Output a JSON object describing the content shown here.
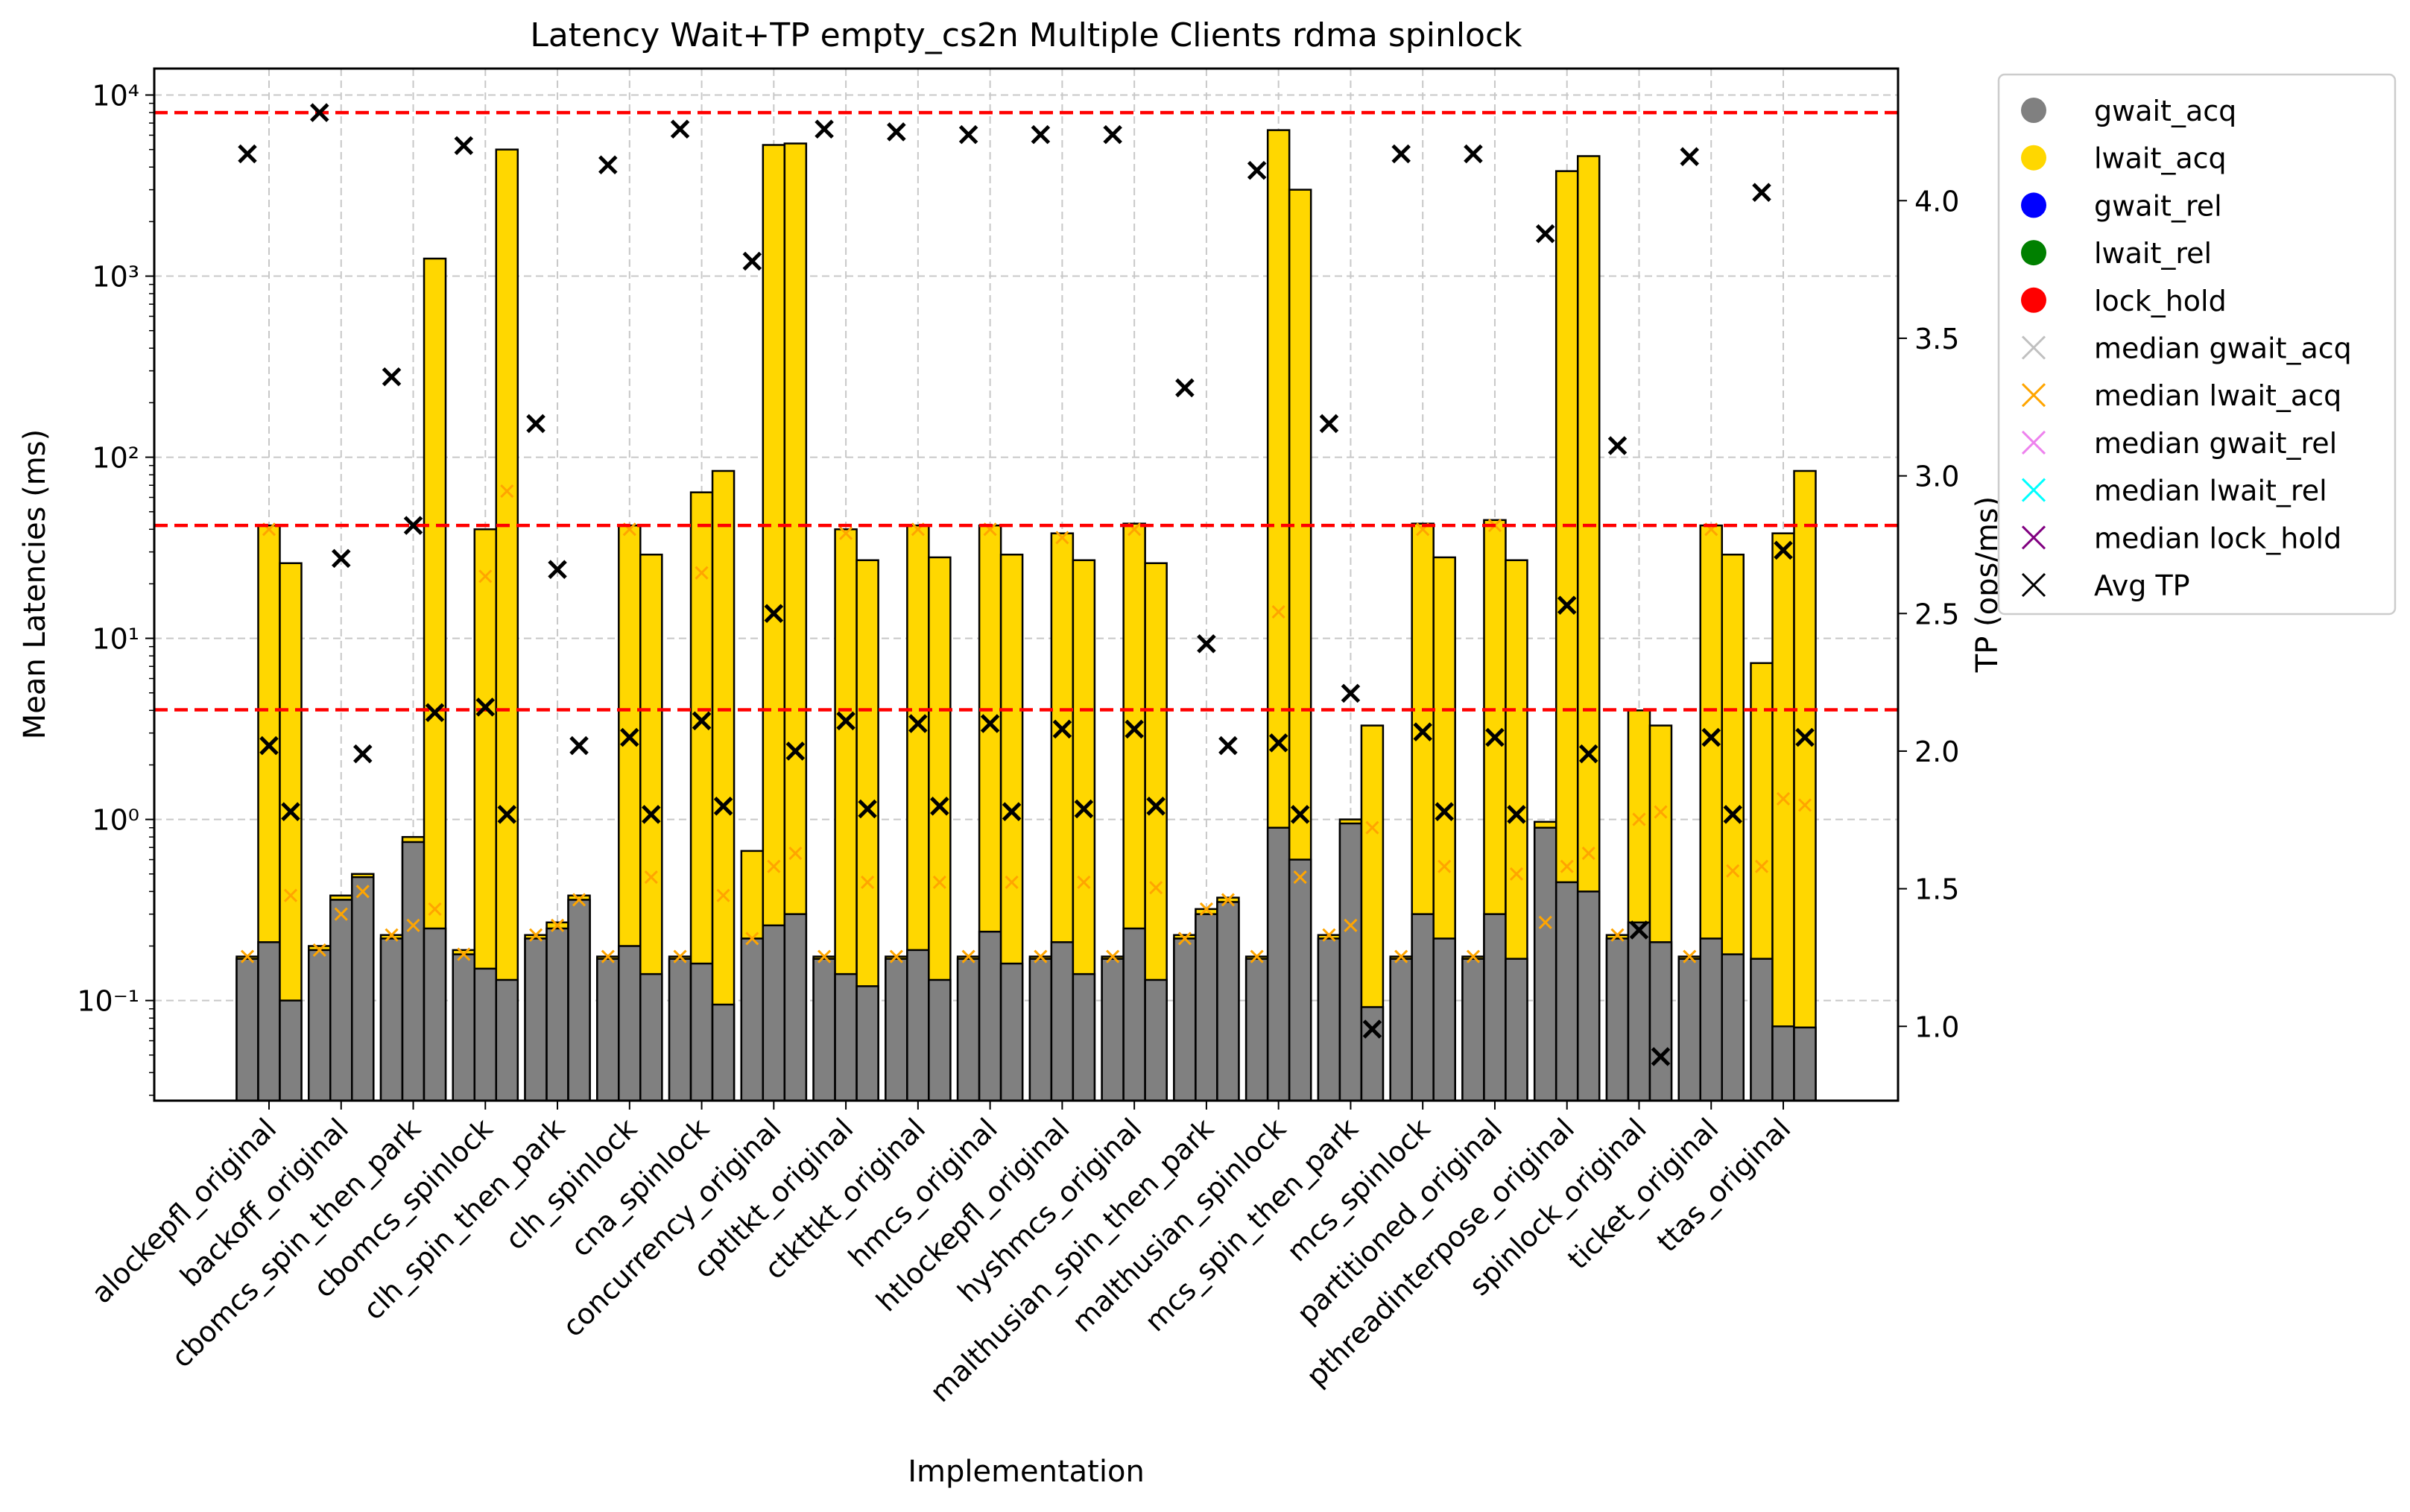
{
  "chart_data": {
    "type": "bar",
    "title": "Latency Wait+TP empty_cs2n Multiple Clients rdma spinlock",
    "xlabel": "Implementation",
    "ylabel": "Mean Latencies (ms)",
    "y2label": "TP (ops/ms)",
    "yscale": "log",
    "ylim": [
      0.028,
      14000
    ],
    "y2lim": [
      0.73,
      4.48
    ],
    "y_ticks": [
      {
        "v": 0.1,
        "label": "10⁻¹"
      },
      {
        "v": 1,
        "label": "10⁰"
      },
      {
        "v": 10,
        "label": "10¹"
      },
      {
        "v": 100,
        "label": "10²"
      },
      {
        "v": 1000,
        "label": "10³"
      },
      {
        "v": 10000,
        "label": "10⁴"
      }
    ],
    "y2_ticks": [
      {
        "v": 1.0,
        "label": "1.0"
      },
      {
        "v": 1.5,
        "label": "1.5"
      },
      {
        "v": 2.0,
        "label": "2.0"
      },
      {
        "v": 2.5,
        "label": "2.5"
      },
      {
        "v": 3.0,
        "label": "3.0"
      },
      {
        "v": 3.5,
        "label": "3.5"
      },
      {
        "v": 4.0,
        "label": "4.0"
      }
    ],
    "grid": true,
    "legend_position": "outside-right",
    "colors": {
      "gwait_acq": "#808080",
      "lwait_acq": "#ffd700",
      "gwait_rel": "#0000ff",
      "lwait_rel": "#008000",
      "lock_hold": "#ff0000",
      "median_gwait_acq": "#c0c0c0",
      "median_lwait_acq": "#ffa500",
      "median_gwait_rel": "#ee82ee",
      "median_lwait_rel": "#00ffff",
      "median_lock_hold": "#800080",
      "avg_tp": "#000000",
      "hline": "#ff0000",
      "grid": "#c8c8c8"
    },
    "legend": [
      {
        "label": "gwait_acq",
        "marker": "circle",
        "color": "#808080"
      },
      {
        "label": "lwait_acq",
        "marker": "circle",
        "color": "#ffd700"
      },
      {
        "label": "gwait_rel",
        "marker": "circle",
        "color": "#0000ff"
      },
      {
        "label": "lwait_rel",
        "marker": "circle",
        "color": "#008000"
      },
      {
        "label": "lock_hold",
        "marker": "circle",
        "color": "#ff0000"
      },
      {
        "label": "median gwait_acq",
        "marker": "x",
        "color": "#c0c0c0"
      },
      {
        "label": "median lwait_acq",
        "marker": "x",
        "color": "#ffa500"
      },
      {
        "label": "median gwait_rel",
        "marker": "x",
        "color": "#ee82ee"
      },
      {
        "label": "median lwait_rel",
        "marker": "x",
        "color": "#00ffff"
      },
      {
        "label": "median lock_hold",
        "marker": "x",
        "color": "#800080"
      },
      {
        "label": "Avg TP",
        "marker": "x",
        "color": "#000000"
      }
    ],
    "hlines_tp": [
      4.32,
      2.82,
      2.15
    ],
    "categories": [
      "alockepfl_original",
      "backoff_original",
      "cbomcs_spin_then_park",
      "cbomcs_spinlock",
      "clh_spin_then_park",
      "clh_spinlock",
      "cna_spinlock",
      "concurrency_original",
      "cptltkt_original",
      "ctkttkt_original",
      "hmcs_original",
      "htlockepfl_original",
      "hyshmcs_original",
      "malthusian_spin_then_park",
      "malthusian_spinlock",
      "mcs_spin_then_park",
      "mcs_spinlock",
      "partitioned_original",
      "pthreadinterpose_original",
      "spinlock_original",
      "ticket_original",
      "ttas_original"
    ],
    "groups": [
      {
        "bars": [
          {
            "gwait_acq": 0.17,
            "total": 0.175,
            "median_lwait_acq": 0.175,
            "tp": 4.17
          },
          {
            "gwait_acq": 0.21,
            "total": 42,
            "median_lwait_acq": 40,
            "tp": 2.02
          },
          {
            "gwait_acq": 0.1,
            "total": 26,
            "median_lwait_acq": 0.38,
            "tp": 1.78
          }
        ]
      },
      {
        "bars": [
          {
            "gwait_acq": 0.19,
            "total": 0.2,
            "median_lwait_acq": 0.19,
            "tp": 4.32
          },
          {
            "gwait_acq": 0.36,
            "total": 0.38,
            "median_lwait_acq": 0.3,
            "tp": 2.7
          },
          {
            "gwait_acq": 0.48,
            "total": 0.5,
            "median_lwait_acq": 0.4,
            "tp": 1.99
          }
        ]
      },
      {
        "bars": [
          {
            "gwait_acq": 0.22,
            "total": 0.23,
            "median_lwait_acq": 0.23,
            "tp": 3.36
          },
          {
            "gwait_acq": 0.75,
            "total": 0.8,
            "median_lwait_acq": 0.26,
            "tp": 2.82
          },
          {
            "gwait_acq": 0.25,
            "total": 1250,
            "median_lwait_acq": 0.32,
            "tp": 2.14
          }
        ]
      },
      {
        "bars": [
          {
            "gwait_acq": 0.18,
            "total": 0.19,
            "median_lwait_acq": 0.18,
            "tp": 4.2
          },
          {
            "gwait_acq": 0.15,
            "total": 40,
            "median_lwait_acq": 22,
            "tp": 2.16
          },
          {
            "gwait_acq": 0.13,
            "total": 5000,
            "median_lwait_acq": 65,
            "tp": 1.77
          }
        ]
      },
      {
        "bars": [
          {
            "gwait_acq": 0.22,
            "total": 0.23,
            "median_lwait_acq": 0.23,
            "tp": 3.19
          },
          {
            "gwait_acq": 0.25,
            "total": 0.27,
            "median_lwait_acq": 0.26,
            "tp": 2.66
          },
          {
            "gwait_acq": 0.36,
            "total": 0.38,
            "median_lwait_acq": 0.36,
            "tp": 2.02
          }
        ]
      },
      {
        "bars": [
          {
            "gwait_acq": 0.17,
            "total": 0.175,
            "median_lwait_acq": 0.175,
            "tp": 4.13
          },
          {
            "gwait_acq": 0.2,
            "total": 42,
            "median_lwait_acq": 40,
            "tp": 2.05
          },
          {
            "gwait_acq": 0.14,
            "total": 29,
            "median_lwait_acq": 0.48,
            "tp": 1.77
          }
        ]
      },
      {
        "bars": [
          {
            "gwait_acq": 0.17,
            "total": 0.175,
            "median_lwait_acq": 0.175,
            "tp": 4.26
          },
          {
            "gwait_acq": 0.16,
            "total": 64,
            "median_lwait_acq": 23,
            "tp": 2.11
          },
          {
            "gwait_acq": 0.095,
            "total": 84,
            "median_lwait_acq": 0.38,
            "tp": 1.8
          }
        ]
      },
      {
        "bars": [
          {
            "gwait_acq": 0.22,
            "total": 0.67,
            "median_lwait_acq": 0.22,
            "tp": 3.78
          },
          {
            "gwait_acq": 0.26,
            "total": 5300,
            "median_lwait_acq": 0.55,
            "tp": 2.5
          },
          {
            "gwait_acq": 0.3,
            "total": 5400,
            "median_lwait_acq": 0.65,
            "tp": 2.0
          }
        ]
      },
      {
        "bars": [
          {
            "gwait_acq": 0.17,
            "total": 0.175,
            "median_lwait_acq": 0.175,
            "tp": 4.26
          },
          {
            "gwait_acq": 0.14,
            "total": 40,
            "median_lwait_acq": 38,
            "tp": 2.11
          },
          {
            "gwait_acq": 0.12,
            "total": 27,
            "median_lwait_acq": 0.45,
            "tp": 1.79
          }
        ]
      },
      {
        "bars": [
          {
            "gwait_acq": 0.17,
            "total": 0.175,
            "median_lwait_acq": 0.175,
            "tp": 4.25
          },
          {
            "gwait_acq": 0.19,
            "total": 42,
            "median_lwait_acq": 40,
            "tp": 2.1
          },
          {
            "gwait_acq": 0.13,
            "total": 28,
            "median_lwait_acq": 0.45,
            "tp": 1.8
          }
        ]
      },
      {
        "bars": [
          {
            "gwait_acq": 0.17,
            "total": 0.175,
            "median_lwait_acq": 0.175,
            "tp": 4.24
          },
          {
            "gwait_acq": 0.24,
            "total": 42,
            "median_lwait_acq": 40,
            "tp": 2.1
          },
          {
            "gwait_acq": 0.16,
            "total": 29,
            "median_lwait_acq": 0.45,
            "tp": 1.78
          }
        ]
      },
      {
        "bars": [
          {
            "gwait_acq": 0.17,
            "total": 0.175,
            "median_lwait_acq": 0.175,
            "tp": 4.24
          },
          {
            "gwait_acq": 0.21,
            "total": 38,
            "median_lwait_acq": 36,
            "tp": 2.08
          },
          {
            "gwait_acq": 0.14,
            "total": 27,
            "median_lwait_acq": 0.45,
            "tp": 1.79
          }
        ]
      },
      {
        "bars": [
          {
            "gwait_acq": 0.17,
            "total": 0.175,
            "median_lwait_acq": 0.175,
            "tp": 4.24
          },
          {
            "gwait_acq": 0.25,
            "total": 43,
            "median_lwait_acq": 40,
            "tp": 2.08
          },
          {
            "gwait_acq": 0.13,
            "total": 26,
            "median_lwait_acq": 0.42,
            "tp": 1.8
          }
        ]
      },
      {
        "bars": [
          {
            "gwait_acq": 0.22,
            "total": 0.23,
            "median_lwait_acq": 0.22,
            "tp": 3.32
          },
          {
            "gwait_acq": 0.3,
            "total": 0.32,
            "median_lwait_acq": 0.32,
            "tp": 2.39
          },
          {
            "gwait_acq": 0.35,
            "total": 0.37,
            "median_lwait_acq": 0.36,
            "tp": 2.02
          }
        ]
      },
      {
        "bars": [
          {
            "gwait_acq": 0.17,
            "total": 0.175,
            "median_lwait_acq": 0.175,
            "tp": 4.11
          },
          {
            "gwait_acq": 0.9,
            "total": 6400,
            "median_lwait_acq": 14,
            "tp": 2.03
          },
          {
            "gwait_acq": 0.6,
            "total": 3000,
            "median_lwait_acq": 0.48,
            "tp": 1.77
          }
        ]
      },
      {
        "bars": [
          {
            "gwait_acq": 0.22,
            "total": 0.23,
            "median_lwait_acq": 0.23,
            "tp": 3.19
          },
          {
            "gwait_acq": 0.95,
            "total": 1.0,
            "median_lwait_acq": 0.26,
            "tp": 2.21
          },
          {
            "gwait_acq": 0.092,
            "total": 3.3,
            "median_lwait_acq": 0.9,
            "tp": 0.99
          }
        ]
      },
      {
        "bars": [
          {
            "gwait_acq": 0.17,
            "total": 0.175,
            "median_lwait_acq": 0.175,
            "tp": 4.17
          },
          {
            "gwait_acq": 0.3,
            "total": 43,
            "median_lwait_acq": 40,
            "tp": 2.07
          },
          {
            "gwait_acq": 0.22,
            "total": 28,
            "median_lwait_acq": 0.55,
            "tp": 1.78
          }
        ]
      },
      {
        "bars": [
          {
            "gwait_acq": 0.17,
            "total": 0.175,
            "median_lwait_acq": 0.175,
            "tp": 4.17
          },
          {
            "gwait_acq": 0.3,
            "total": 45,
            "median_lwait_acq": 42,
            "tp": 2.05
          },
          {
            "gwait_acq": 0.17,
            "total": 27,
            "median_lwait_acq": 0.5,
            "tp": 1.77
          }
        ]
      },
      {
        "bars": [
          {
            "gwait_acq": 0.9,
            "total": 0.97,
            "median_lwait_acq": 0.27,
            "tp": 3.88
          },
          {
            "gwait_acq": 0.45,
            "total": 3800,
            "median_lwait_acq": 0.55,
            "tp": 2.53
          },
          {
            "gwait_acq": 0.4,
            "total": 4600,
            "median_lwait_acq": 0.65,
            "tp": 1.99
          }
        ]
      },
      {
        "bars": [
          {
            "gwait_acq": 0.22,
            "total": 0.23,
            "median_lwait_acq": 0.23,
            "tp": 3.11
          },
          {
            "gwait_acq": 0.27,
            "total": 4.0,
            "median_lwait_acq": 1.0,
            "tp": 1.35
          },
          {
            "gwait_acq": 0.21,
            "total": 3.3,
            "median_lwait_acq": 1.1,
            "tp": 0.89
          }
        ]
      },
      {
        "bars": [
          {
            "gwait_acq": 0.17,
            "total": 0.175,
            "median_lwait_acq": 0.175,
            "tp": 4.16
          },
          {
            "gwait_acq": 0.22,
            "total": 42,
            "median_lwait_acq": 40,
            "tp": 2.05
          },
          {
            "gwait_acq": 0.18,
            "total": 29,
            "median_lwait_acq": 0.52,
            "tp": 1.77
          }
        ]
      },
      {
        "bars": [
          {
            "gwait_acq": 0.17,
            "total": 7.3,
            "median_lwait_acq": 0.55,
            "tp": 4.03
          },
          {
            "gwait_acq": 0.072,
            "total": 38,
            "median_lwait_acq": 1.3,
            "tp": 2.73
          },
          {
            "gwait_acq": 0.071,
            "total": 84,
            "median_lwait_acq": 1.2,
            "tp": 2.05
          }
        ]
      }
    ]
  }
}
